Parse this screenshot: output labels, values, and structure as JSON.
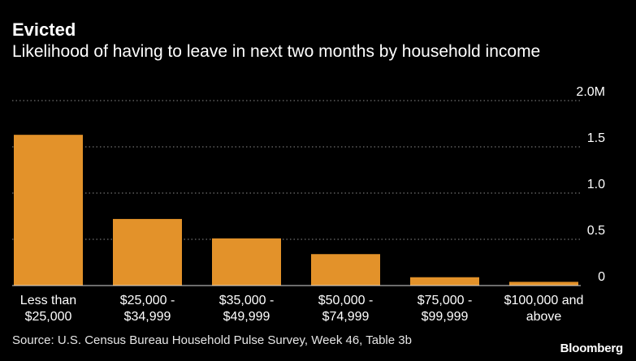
{
  "title": "Evicted",
  "subtitle": "Likelihood of having to leave in next two months by household income",
  "source": "Source: U.S. Census Bureau Household Pulse Survey, Week 46, Table 3b",
  "brand": "Bloomberg",
  "colors": {
    "bar": "#E3922A",
    "grid": "#8c8c8c",
    "background": "#000000",
    "text": "#ffffff"
  },
  "chart_data": {
    "type": "bar",
    "categories": [
      [
        "Less than",
        "$25,000"
      ],
      [
        "$25,000 -",
        "$34,999"
      ],
      [
        "$35,000 -",
        "$49,999"
      ],
      [
        "$50,000 -",
        "$74,999"
      ],
      [
        "$75,000 -",
        "$99,999"
      ],
      [
        "$100,000 and",
        "above"
      ]
    ],
    "values": [
      1.63,
      0.72,
      0.51,
      0.34,
      0.09,
      0.04
    ],
    "ylim": [
      0,
      2.0
    ],
    "yticks": [
      {
        "value": 0,
        "label": "0"
      },
      {
        "value": 0.5,
        "label": "0.5"
      },
      {
        "value": 1.0,
        "label": "1.0"
      },
      {
        "value": 1.5,
        "label": "1.5"
      },
      {
        "value": 2.0,
        "label": "2.0M"
      }
    ],
    "grid": true,
    "y_axis_side": "right"
  }
}
